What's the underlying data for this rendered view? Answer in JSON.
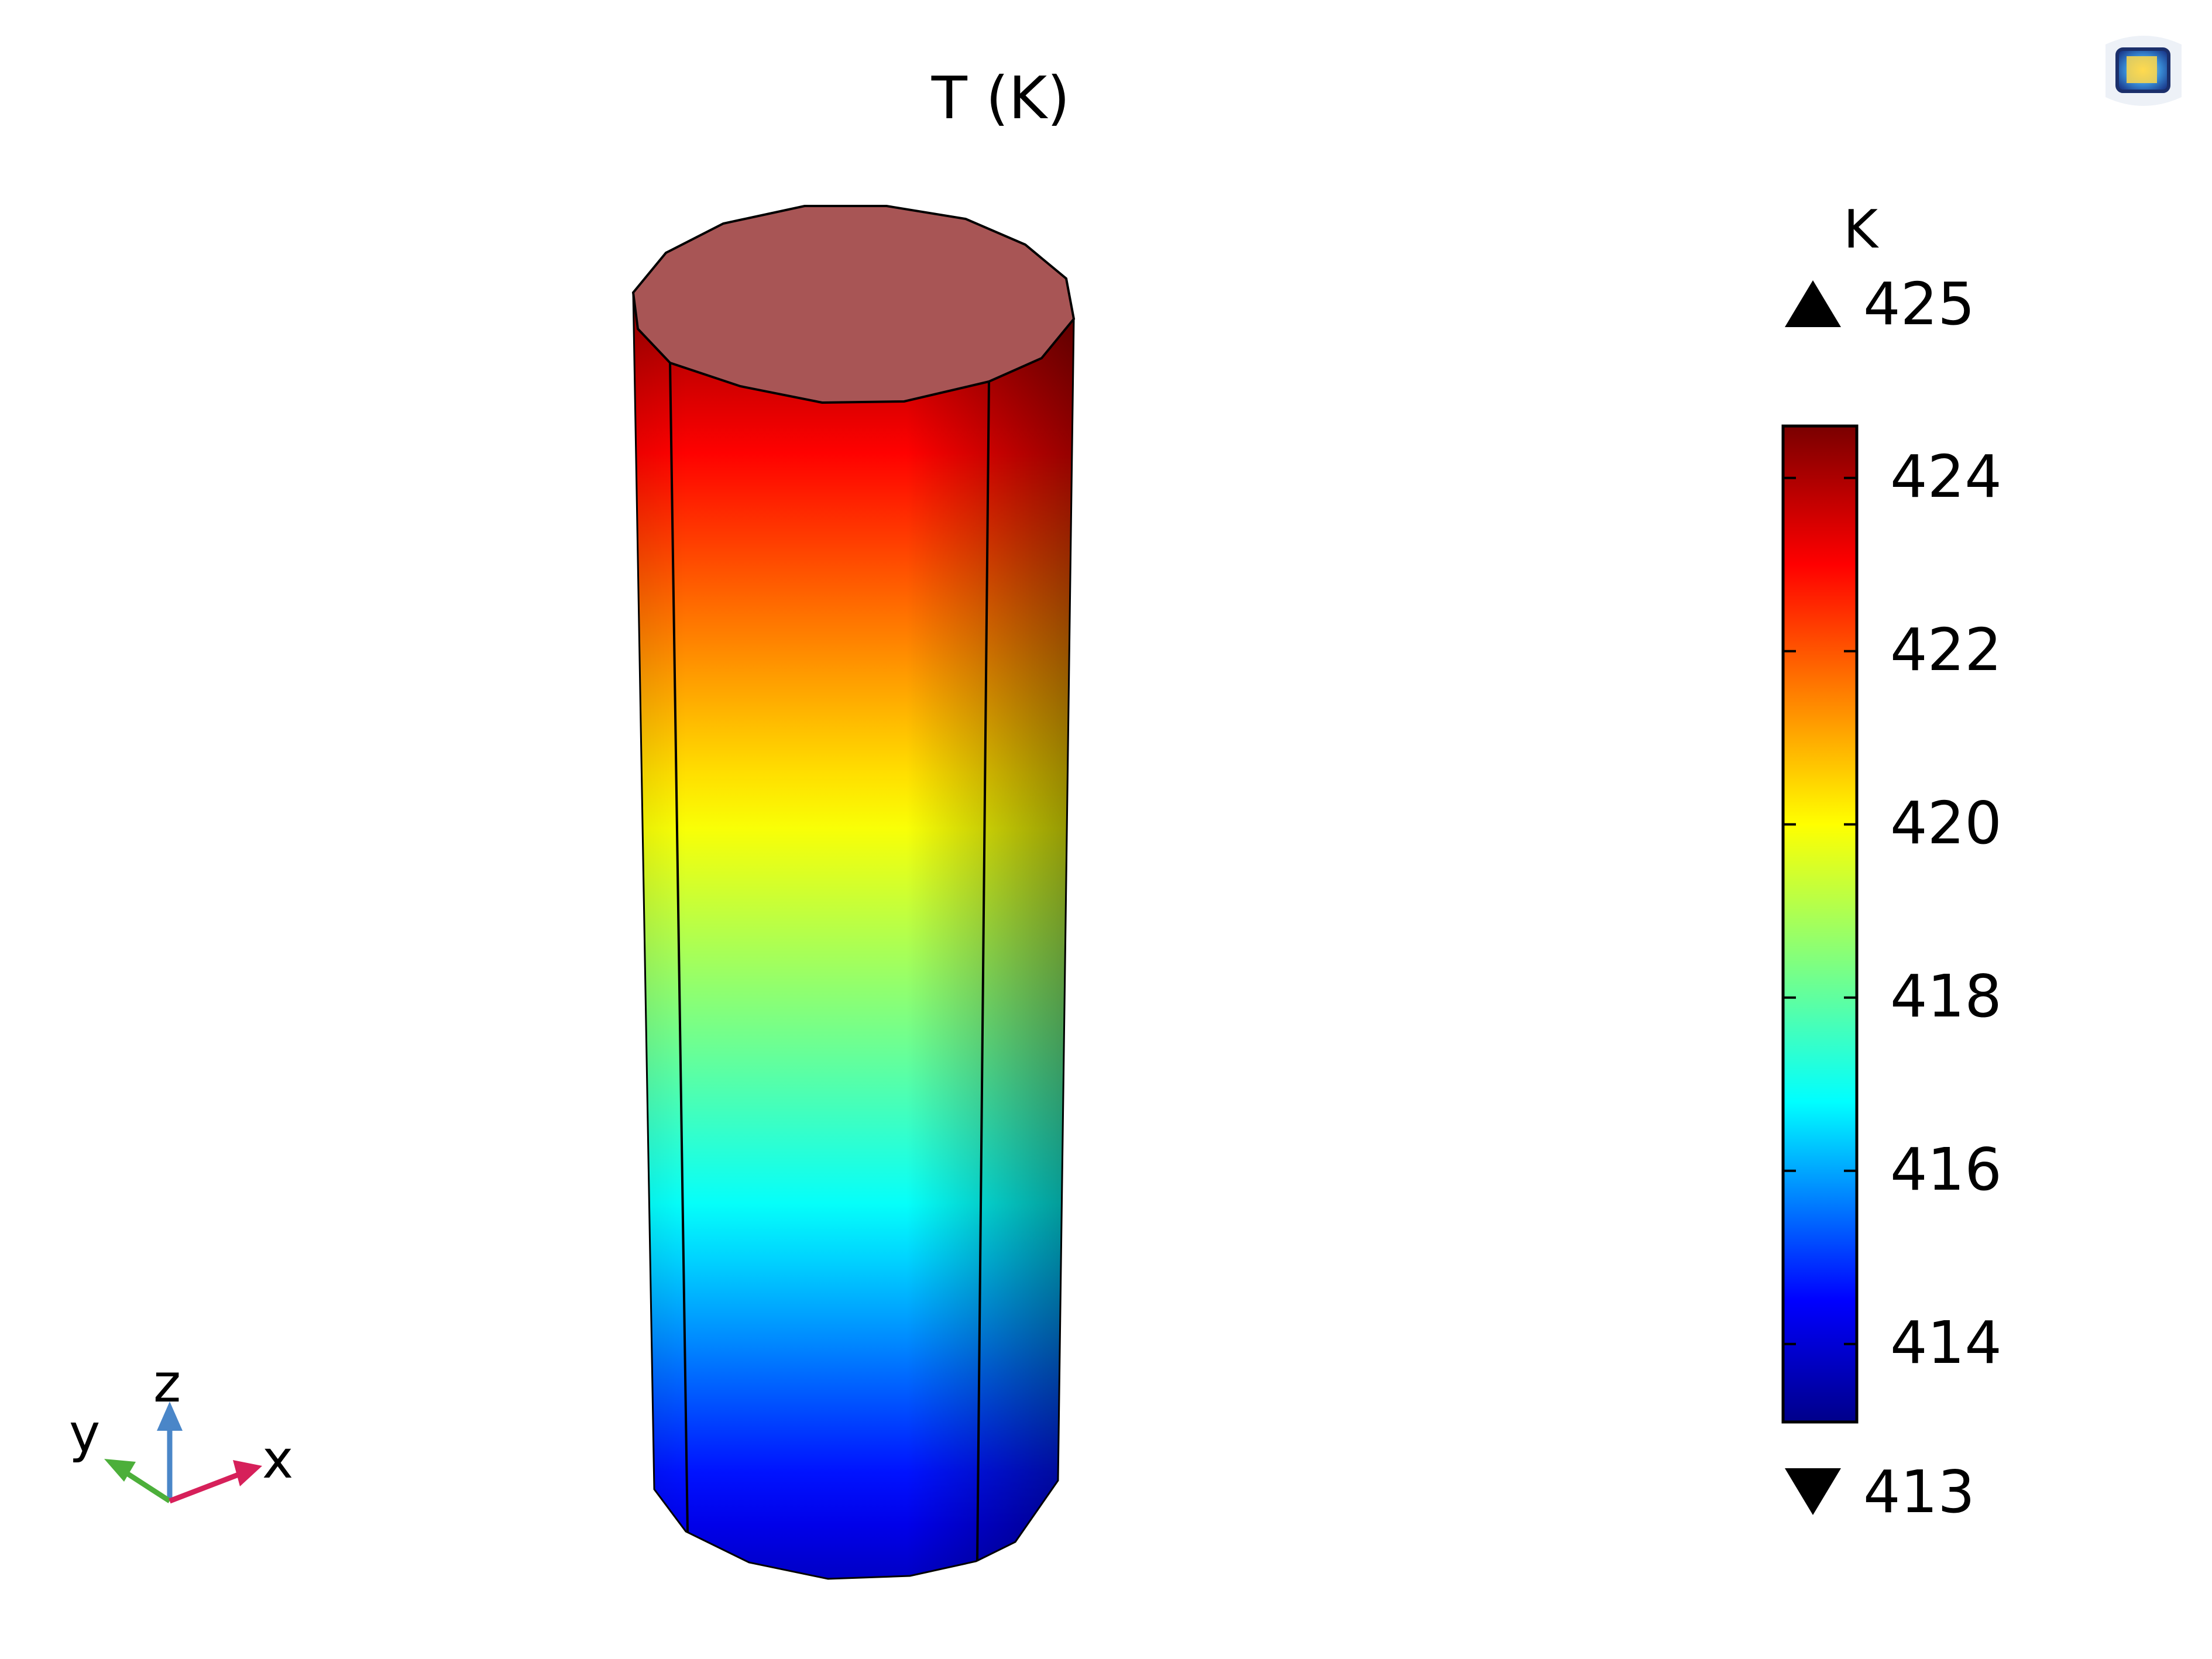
{
  "chart_data": {
    "type": "heatmap",
    "title": "T (K)",
    "colorbar": {
      "unit": "K",
      "max_label": "425",
      "min_label": "413",
      "range": [
        413.1,
        424.6
      ],
      "ticks": [
        "424",
        "422",
        "420",
        "418",
        "416",
        "414"
      ],
      "colormap": "rainbow",
      "stops": [
        {
          "value": 413.1,
          "color": "#00008a"
        },
        {
          "value": 414.5,
          "color": "#0000ff"
        },
        {
          "value": 416.8,
          "color": "#00ffff"
        },
        {
          "value": 420.0,
          "color": "#ffff00"
        },
        {
          "value": 423.0,
          "color": "#ff0000"
        },
        {
          "value": 424.6,
          "color": "#7a0000"
        }
      ]
    },
    "surface": {
      "shape": "cylinder",
      "top_value": 424.3,
      "bottom_value": 413.8
    },
    "axes_triad": [
      "z",
      "y",
      "x"
    ]
  },
  "colors": {
    "top_face": "#a85555",
    "x_axis": "#d6205a",
    "y_axis": "#4caf3a",
    "z_axis": "#4a86c8"
  },
  "icons": {
    "logo": "comsol-logo-icon"
  }
}
